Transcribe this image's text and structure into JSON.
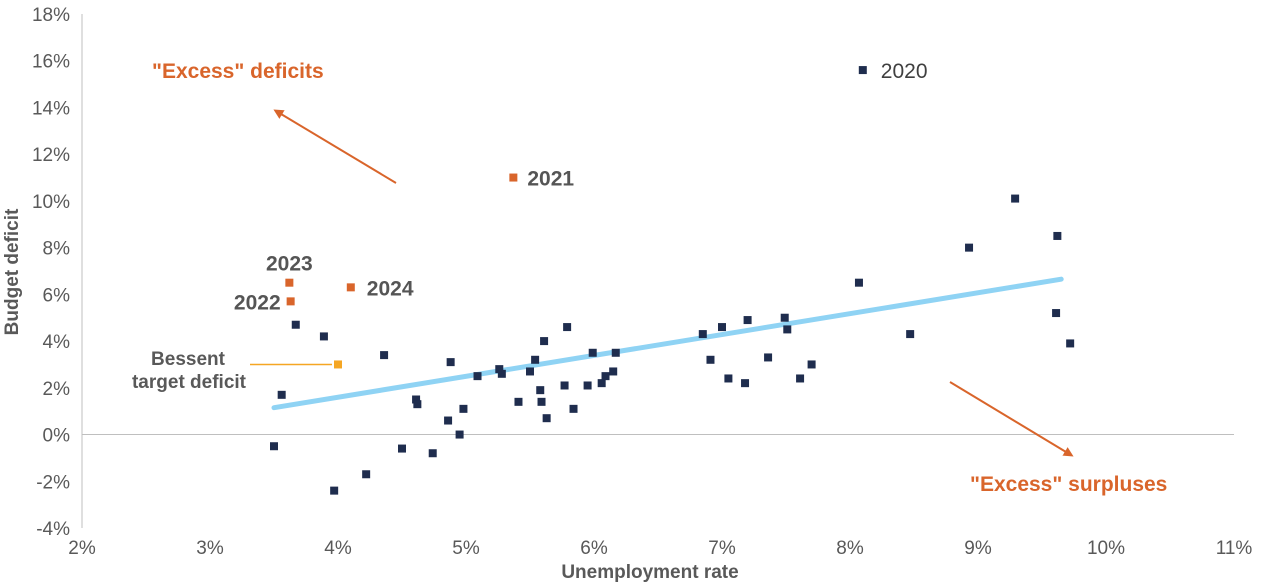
{
  "chart_data": {
    "type": "scatter",
    "xlabel": "Unemployment rate",
    "ylabel": "Budget deficit",
    "xlim": [
      2,
      11
    ],
    "ylim": [
      -4,
      18
    ],
    "x_ticks": [
      "2%",
      "3%",
      "4%",
      "5%",
      "6%",
      "7%",
      "8%",
      "9%",
      "10%",
      "11%"
    ],
    "y_ticks": [
      "18%",
      "16%",
      "14%",
      "12%",
      "10%",
      "8%",
      "6%",
      "4%",
      "2%",
      "0%",
      "-2%",
      "-4%"
    ],
    "grid": false,
    "colors": {
      "historical": "#1f2d4e",
      "highlight": "#d9652b",
      "target": "#f5a623",
      "trend": "#8fd3f4",
      "callout": "#d9652b"
    },
    "series": [
      {
        "points": [
          [
            3.5,
            -0.5
          ],
          [
            3.56,
            1.7
          ],
          [
            3.67,
            4.7
          ],
          [
            3.89,
            4.2
          ],
          [
            3.97,
            -2.4
          ],
          [
            4.22,
            -1.7
          ],
          [
            4.36,
            3.4
          ],
          [
            4.5,
            -0.6
          ],
          [
            4.61,
            1.5
          ],
          [
            4.62,
            1.3
          ],
          [
            4.74,
            -0.8
          ],
          [
            4.86,
            0.6
          ],
          [
            4.88,
            3.1
          ],
          [
            4.95,
            0.0
          ],
          [
            4.98,
            1.1
          ],
          [
            5.09,
            2.5
          ],
          [
            5.26,
            2.8
          ],
          [
            5.28,
            2.6
          ],
          [
            5.41,
            1.4
          ],
          [
            5.5,
            2.7
          ],
          [
            5.54,
            3.2
          ],
          [
            5.58,
            1.9
          ],
          [
            5.59,
            1.4
          ],
          [
            5.61,
            4.0
          ],
          [
            5.63,
            0.7
          ],
          [
            5.77,
            2.1
          ],
          [
            5.79,
            4.6
          ],
          [
            5.84,
            1.1
          ],
          [
            5.95,
            2.1
          ],
          [
            5.99,
            3.5
          ],
          [
            6.06,
            2.2
          ],
          [
            6.09,
            2.5
          ],
          [
            6.15,
            2.7
          ],
          [
            6.17,
            3.5
          ],
          [
            6.85,
            4.3
          ],
          [
            6.91,
            3.2
          ],
          [
            7.0,
            4.6
          ],
          [
            7.05,
            2.4
          ],
          [
            7.18,
            2.2
          ],
          [
            7.2,
            4.9
          ],
          [
            7.36,
            3.3
          ],
          [
            7.49,
            5.0
          ],
          [
            7.51,
            4.5
          ],
          [
            7.61,
            2.4
          ],
          [
            7.7,
            3.0
          ],
          [
            8.07,
            6.5
          ],
          [
            8.1,
            15.6
          ],
          [
            8.47,
            4.3
          ],
          [
            8.93,
            8.0
          ],
          [
            9.29,
            10.1
          ],
          [
            9.61,
            5.2
          ],
          [
            9.62,
            8.5
          ],
          [
            9.72,
            3.9
          ]
        ]
      },
      {
        "points": [
          [
            3.62,
            6.5
          ],
          [
            3.63,
            5.7
          ],
          [
            4.1,
            6.3
          ],
          [
            5.37,
            11.0
          ]
        ]
      }
    ],
    "point_labels": [
      {
        "x": 8.1,
        "y": 15.6,
        "text": "2020",
        "style": "normal"
      },
      {
        "x": 5.37,
        "y": 11.0,
        "text": "2021",
        "style": "bold"
      },
      {
        "x": 3.62,
        "y": 6.5,
        "text": "2023",
        "style": "bold"
      },
      {
        "x": 3.63,
        "y": 5.7,
        "text": "2022",
        "style": "bold"
      },
      {
        "x": 4.1,
        "y": 6.3,
        "text": "2024",
        "style": "bold"
      }
    ],
    "target_point": {
      "x": 4.0,
      "y": 3.0,
      "label_line1": "Bessent",
      "label_line2": "target deficit"
    },
    "trendline": {
      "x1": 3.5,
      "y1": 1.15,
      "x2": 9.65,
      "y2": 6.65
    },
    "annotations": {
      "deficits": "\"Excess\" deficits",
      "surpluses": "\"Excess\" surpluses"
    }
  }
}
